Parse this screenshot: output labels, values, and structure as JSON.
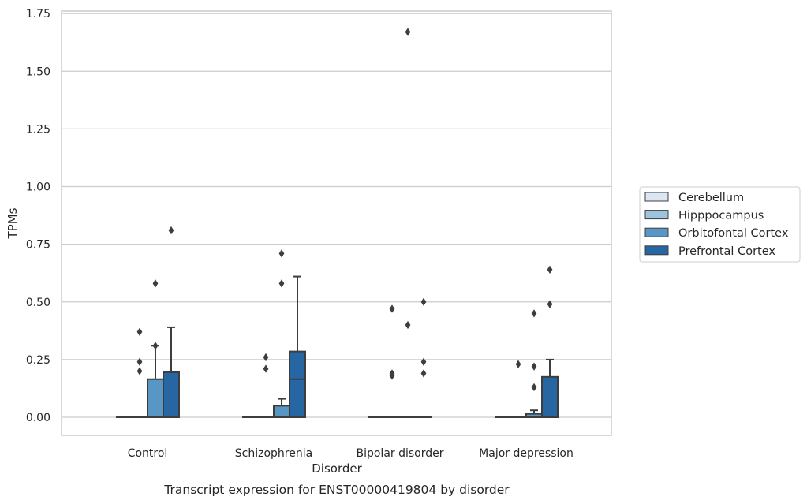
{
  "chart_data": {
    "type": "box",
    "title": "",
    "caption": "Transcript expression for ENST00000419804 by disorder",
    "xlabel": "Disorder",
    "ylabel": "TPMs",
    "ylim": [
      -0.08,
      1.75
    ],
    "yticks": [
      0.0,
      0.25,
      0.5,
      0.75,
      1.0,
      1.25,
      1.5,
      1.75
    ],
    "ytick_labels": [
      "0.00",
      "0.25",
      "0.50",
      "0.75",
      "1.00",
      "1.25",
      "1.50",
      "1.75"
    ],
    "grid": true,
    "legend_position": "right",
    "categories": [
      "Control",
      "Schizophrenia",
      "Bipolar disorder",
      "Major depression"
    ],
    "series": [
      {
        "name": "Cerebellum",
        "color": "#dbe7f3",
        "boxes": [
          {
            "whislo": 0,
            "q1": 0,
            "med": 0,
            "q3": 0,
            "whishi": 0,
            "fliers": []
          },
          {
            "whislo": 0,
            "q1": 0,
            "med": 0,
            "q3": 0,
            "whishi": 0,
            "fliers": []
          },
          {
            "whislo": 0,
            "q1": 0,
            "med": 0,
            "q3": 0,
            "whishi": 0,
            "fliers": []
          },
          {
            "whislo": 0,
            "q1": 0,
            "med": 0,
            "q3": 0,
            "whishi": 0,
            "fliers": []
          }
        ]
      },
      {
        "name": "Hipppocampus",
        "color": "#9ec3dd",
        "boxes": [
          {
            "whislo": 0,
            "q1": 0,
            "med": 0,
            "q3": 0,
            "whishi": 0,
            "fliers": [
              0.37,
              0.24,
              0.2
            ]
          },
          {
            "whislo": 0,
            "q1": 0,
            "med": 0,
            "q3": 0,
            "whishi": 0,
            "fliers": [
              0.26,
              0.21
            ]
          },
          {
            "whislo": 0,
            "q1": 0,
            "med": 0,
            "q3": 0,
            "whishi": 0,
            "fliers": [
              0.47,
              0.19,
              0.18
            ]
          },
          {
            "whislo": 0,
            "q1": 0,
            "med": 0,
            "q3": 0,
            "whishi": 0,
            "fliers": [
              0.23
            ]
          }
        ]
      },
      {
        "name": "Orbitofontal Cortex",
        "color": "#5a96c4",
        "boxes": [
          {
            "whislo": 0,
            "q1": 0,
            "med": 0,
            "q3": 0.165,
            "whishi": 0.31,
            "fliers": [
              0.31,
              0.58
            ]
          },
          {
            "whislo": 0,
            "q1": 0,
            "med": 0,
            "q3": 0.05,
            "whishi": 0.08,
            "fliers": [
              0.71,
              0.58
            ]
          },
          {
            "whislo": 0,
            "q1": 0,
            "med": 0,
            "q3": 0,
            "whishi": 0,
            "fliers": [
              1.67,
              0.4
            ]
          },
          {
            "whislo": 0,
            "q1": 0,
            "med": 0,
            "q3": 0.015,
            "whishi": 0.03,
            "fliers": [
              0.45,
              0.22,
              0.13
            ]
          }
        ]
      },
      {
        "name": "Prefrontal Cortex",
        "color": "#2666a3",
        "boxes": [
          {
            "whislo": 0,
            "q1": 0,
            "med": 0,
            "q3": 0.195,
            "whishi": 0.39,
            "fliers": [
              0.81
            ]
          },
          {
            "whislo": 0,
            "q1": 0,
            "med": 0.165,
            "q3": 0.285,
            "whishi": 0.61,
            "fliers": []
          },
          {
            "whislo": 0,
            "q1": 0,
            "med": 0,
            "q3": 0,
            "whishi": 0,
            "fliers": [
              0.5,
              0.24,
              0.19
            ]
          },
          {
            "whislo": 0,
            "q1": 0,
            "med": 0,
            "q3": 0.175,
            "whishi": 0.25,
            "fliers": [
              0.64,
              0.49
            ]
          }
        ]
      }
    ]
  }
}
